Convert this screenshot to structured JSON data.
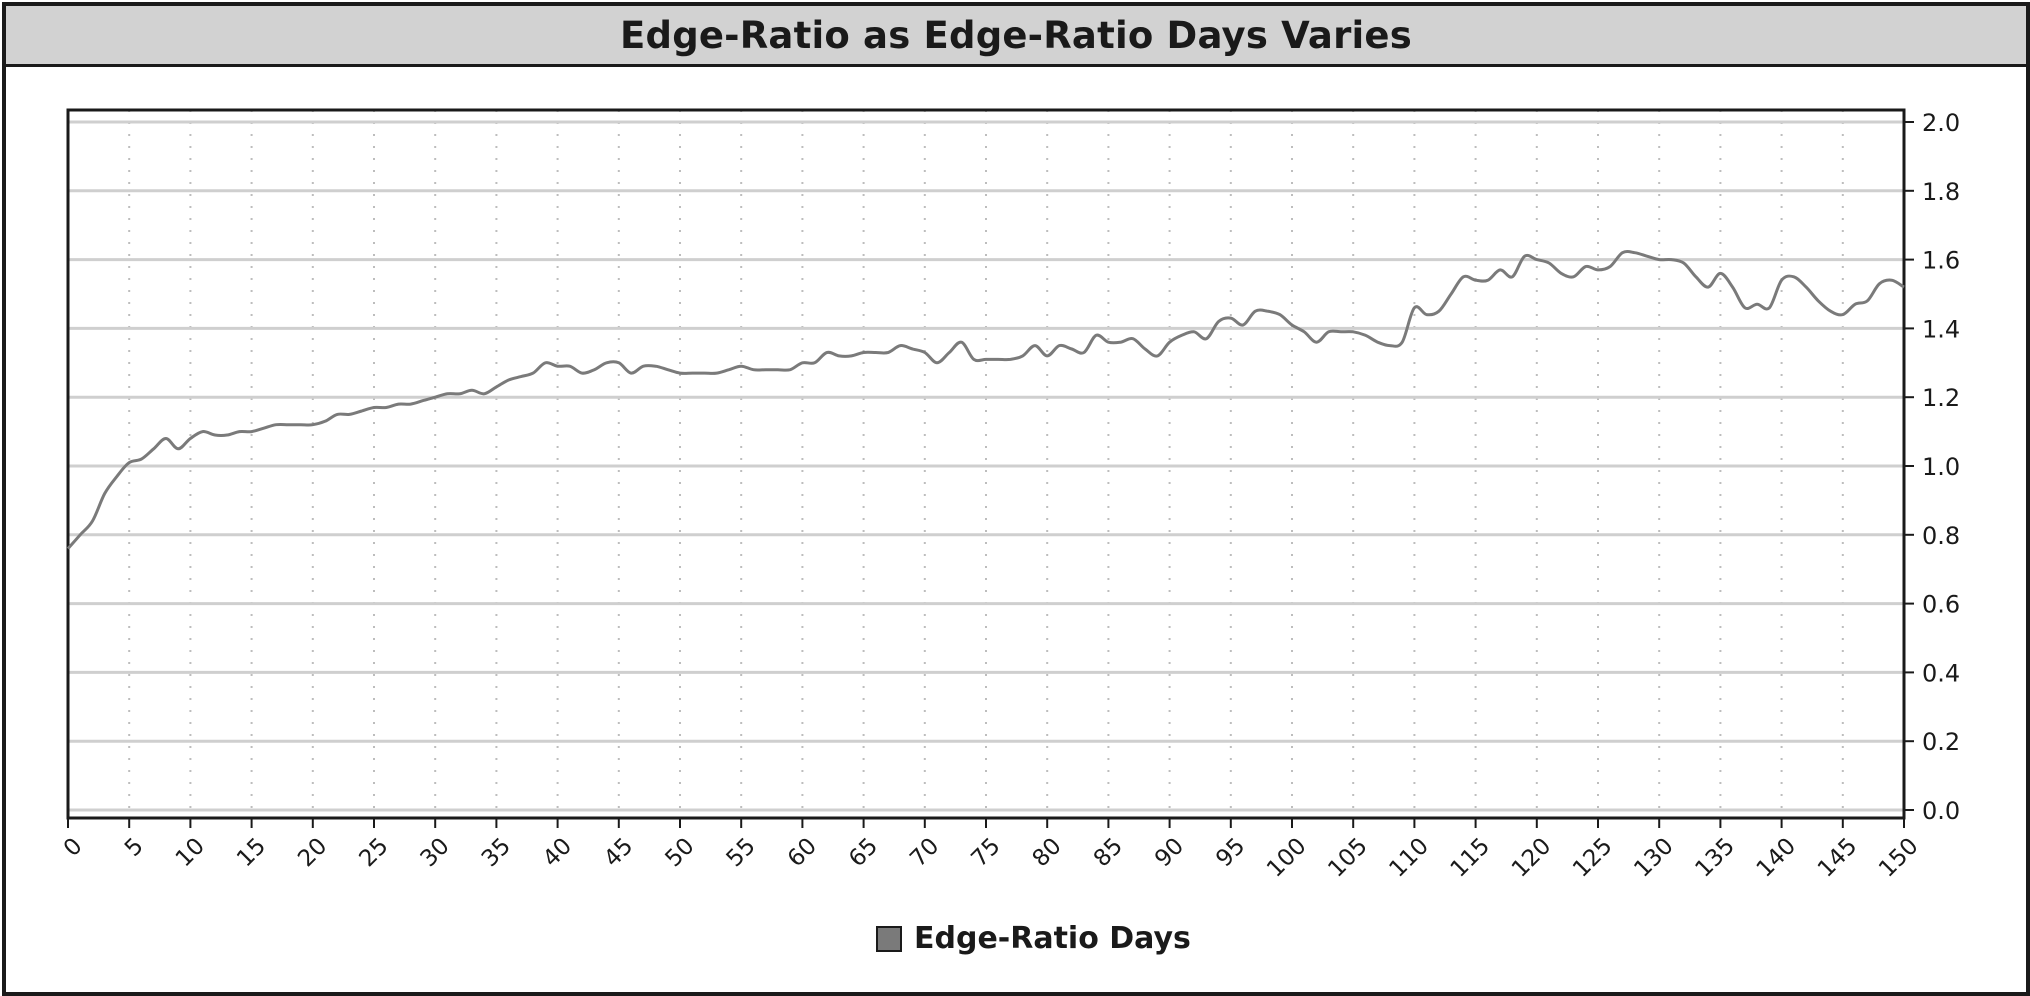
{
  "chart_data": {
    "type": "line",
    "title": "Edge-Ratio as Edge-Ratio Days Varies",
    "xlabel": "",
    "ylabel": "",
    "xlim": [
      0,
      150
    ],
    "ylim": [
      0,
      2
    ],
    "x_ticks": [
      "0",
      "5",
      "10",
      "15",
      "20",
      "25",
      "30",
      "35",
      "40",
      "45",
      "50",
      "55",
      "60",
      "65",
      "70",
      "75",
      "80",
      "85",
      "90",
      "95",
      "100",
      "105",
      "110",
      "115",
      "120",
      "125",
      "130",
      "135",
      "140",
      "145",
      "150"
    ],
    "y_ticks": [
      "0.0",
      "0.2",
      "0.4",
      "0.6",
      "0.8",
      "1.0",
      "1.2",
      "1.4",
      "1.6",
      "1.8",
      "2.0"
    ],
    "y_axis_side": "right",
    "grid": true,
    "legend_position": "bottom-center",
    "colors": {
      "line": "#7a7a7a",
      "grid": "#cfcfcf",
      "frame": "#1a1a1a"
    },
    "series": [
      {
        "name": "Edge-Ratio Days",
        "x": [
          0,
          1,
          2,
          3,
          4,
          5,
          6,
          7,
          8,
          9,
          10,
          11,
          12,
          13,
          14,
          15,
          16,
          17,
          18,
          19,
          20,
          21,
          22,
          23,
          24,
          25,
          26,
          27,
          28,
          29,
          30,
          31,
          32,
          33,
          34,
          35,
          36,
          37,
          38,
          39,
          40,
          41,
          42,
          43,
          44,
          45,
          46,
          47,
          48,
          49,
          50,
          51,
          52,
          53,
          54,
          55,
          56,
          57,
          58,
          59,
          60,
          61,
          62,
          63,
          64,
          65,
          66,
          67,
          68,
          69,
          70,
          71,
          72,
          73,
          74,
          75,
          76,
          77,
          78,
          79,
          80,
          81,
          82,
          83,
          84,
          85,
          86,
          87,
          88,
          89,
          90,
          91,
          92,
          93,
          94,
          95,
          96,
          97,
          98,
          99,
          100,
          101,
          102,
          103,
          104,
          105,
          106,
          107,
          108,
          109,
          110,
          111,
          112,
          113,
          114,
          115,
          116,
          117,
          118,
          119,
          120,
          121,
          122,
          123,
          124,
          125,
          126,
          127,
          128,
          129,
          130,
          131,
          132,
          133,
          134,
          135,
          136,
          137,
          138,
          139,
          140,
          141,
          142,
          143,
          144,
          145,
          146,
          147,
          148,
          149,
          150
        ],
        "values": [
          0.76,
          0.8,
          0.84,
          0.92,
          0.97,
          1.01,
          1.02,
          1.05,
          1.08,
          1.05,
          1.08,
          1.1,
          1.09,
          1.09,
          1.1,
          1.1,
          1.11,
          1.12,
          1.12,
          1.12,
          1.12,
          1.13,
          1.15,
          1.15,
          1.16,
          1.17,
          1.17,
          1.18,
          1.18,
          1.19,
          1.2,
          1.21,
          1.21,
          1.22,
          1.21,
          1.23,
          1.25,
          1.26,
          1.27,
          1.3,
          1.29,
          1.29,
          1.27,
          1.28,
          1.3,
          1.3,
          1.27,
          1.29,
          1.29,
          1.28,
          1.27,
          1.27,
          1.27,
          1.27,
          1.28,
          1.29,
          1.28,
          1.28,
          1.28,
          1.28,
          1.3,
          1.3,
          1.33,
          1.32,
          1.32,
          1.33,
          1.33,
          1.33,
          1.35,
          1.34,
          1.33,
          1.3,
          1.33,
          1.36,
          1.31,
          1.31,
          1.31,
          1.31,
          1.32,
          1.35,
          1.32,
          1.35,
          1.34,
          1.33,
          1.38,
          1.36,
          1.36,
          1.37,
          1.34,
          1.32,
          1.36,
          1.38,
          1.39,
          1.37,
          1.42,
          1.43,
          1.41,
          1.45,
          1.45,
          1.44,
          1.41,
          1.39,
          1.36,
          1.39,
          1.39,
          1.39,
          1.38,
          1.36,
          1.35,
          1.36,
          1.46,
          1.44,
          1.45,
          1.5,
          1.55,
          1.54,
          1.54,
          1.57,
          1.55,
          1.61,
          1.6,
          1.59,
          1.56,
          1.55,
          1.58,
          1.57,
          1.58,
          1.62,
          1.62,
          1.61,
          1.6,
          1.6,
          1.59,
          1.55,
          1.52,
          1.56,
          1.52,
          1.46,
          1.47,
          1.46,
          1.54,
          1.55,
          1.52,
          1.48,
          1.45,
          1.44,
          1.47,
          1.48,
          1.53,
          1.54,
          1.52
        ]
      }
    ]
  }
}
